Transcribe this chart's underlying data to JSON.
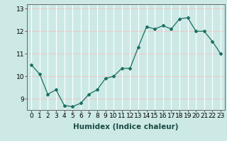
{
  "x": [
    0,
    1,
    2,
    3,
    4,
    5,
    6,
    7,
    8,
    9,
    10,
    11,
    12,
    13,
    14,
    15,
    16,
    17,
    18,
    19,
    20,
    21,
    22,
    23
  ],
  "y": [
    10.5,
    10.1,
    9.2,
    9.4,
    8.7,
    8.65,
    8.8,
    9.2,
    9.4,
    9.9,
    10.0,
    10.35,
    10.35,
    11.3,
    12.2,
    12.1,
    12.25,
    12.1,
    12.55,
    12.6,
    12.0,
    12.0,
    11.55,
    11.0
  ],
  "xlabel": "Humidex (Indice chaleur)",
  "xlim": [
    -0.5,
    23.5
  ],
  "ylim": [
    8.5,
    13.2
  ],
  "yticks": [
    9,
    10,
    11,
    12,
    13
  ],
  "xticks": [
    0,
    1,
    2,
    3,
    4,
    5,
    6,
    7,
    8,
    9,
    10,
    11,
    12,
    13,
    14,
    15,
    16,
    17,
    18,
    19,
    20,
    21,
    22,
    23
  ],
  "line_color": "#1a6e62",
  "marker_color": "#1a6e62",
  "bg_color": "#cce9e6",
  "grid_color": "#ffffff",
  "grid_red_color": "#e8c8c8",
  "spine_color": "#666666",
  "xlabel_fontsize": 7.5,
  "tick_fontsize": 6.5
}
